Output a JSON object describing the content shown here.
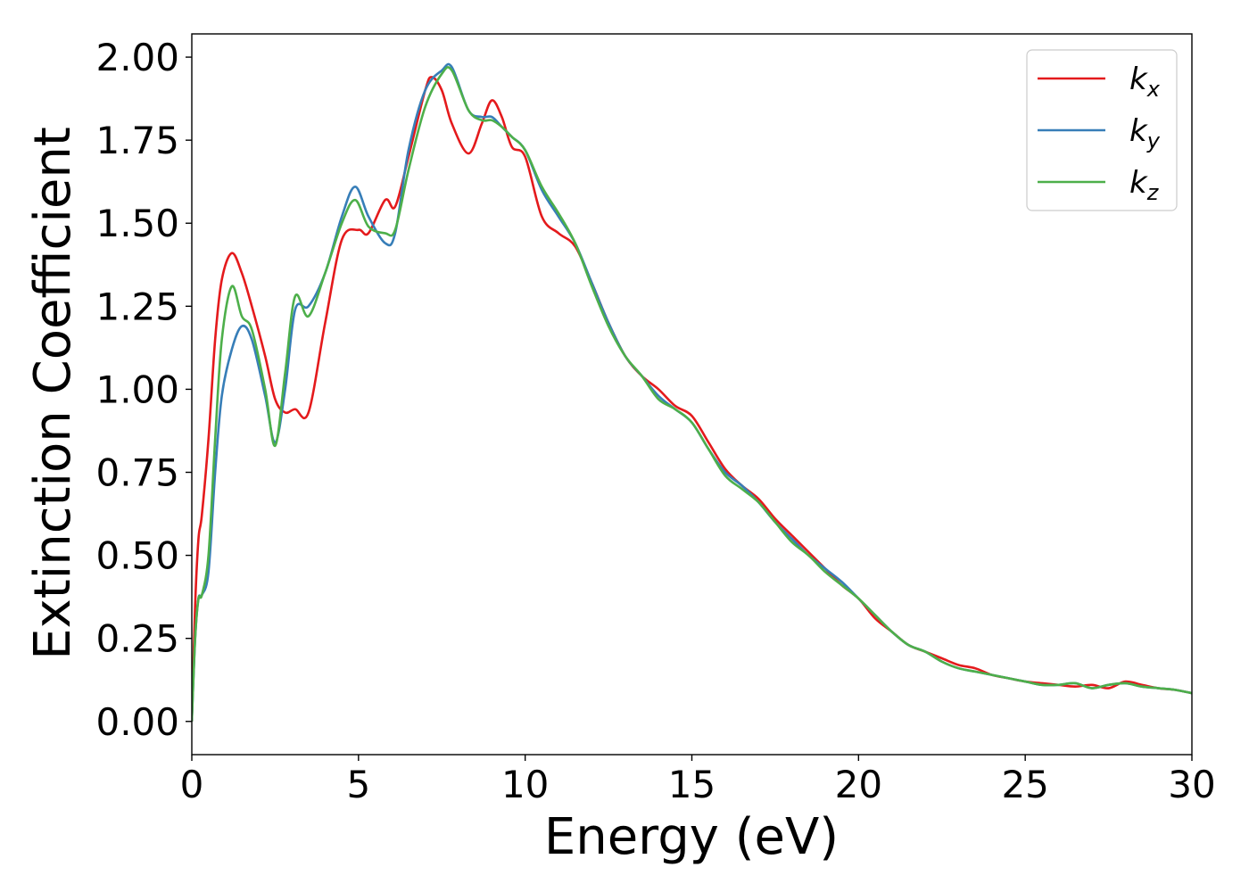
{
  "chart_data": {
    "type": "line",
    "xlabel": "Energy (eV)",
    "ylabel": "Extinction Coefficient",
    "xlim": [
      0,
      30
    ],
    "ylim": [
      -0.1,
      2.07
    ],
    "xticks": [
      0,
      5,
      10,
      15,
      20,
      25,
      30
    ],
    "xtick_labels": [
      "0",
      "5",
      "10",
      "15",
      "20",
      "25",
      "30"
    ],
    "yticks": [
      0,
      0.25,
      0.5,
      0.75,
      1.0,
      1.25,
      1.5,
      1.75,
      2.0
    ],
    "ytick_labels": [
      "0.00",
      "0.25",
      "0.50",
      "0.75",
      "1.00",
      "1.25",
      "1.50",
      "1.75",
      "2.00"
    ],
    "grid": false,
    "legend_position": "top-right",
    "series": [
      {
        "name": "k_x",
        "label_main": "k",
        "label_sub": "x",
        "color": "#e41a1c",
        "x": [
          0,
          0.1,
          0.2,
          0.3,
          0.5,
          0.7,
          0.9,
          1.2,
          1.5,
          1.8,
          2.2,
          2.5,
          2.8,
          3.1,
          3.5,
          4.0,
          4.5,
          5.0,
          5.3,
          5.8,
          6.1,
          6.5,
          7.0,
          7.2,
          7.5,
          7.8,
          8.3,
          8.7,
          9.0,
          9.3,
          9.6,
          10.0,
          10.5,
          11.0,
          11.5,
          12.0,
          12.5,
          13.0,
          13.5,
          14.0,
          14.5,
          15.0,
          15.5,
          16.0,
          16.5,
          17.0,
          17.5,
          18.0,
          18.5,
          19.0,
          19.5,
          20.0,
          20.5,
          21.0,
          21.5,
          22.0,
          22.5,
          23.0,
          23.5,
          24.0,
          24.5,
          25.0,
          25.5,
          26.0,
          26.5,
          27.0,
          27.5,
          28.0,
          28.5,
          29.0,
          29.5,
          30.0
        ],
        "y": [
          0.0,
          0.35,
          0.55,
          0.62,
          0.85,
          1.15,
          1.33,
          1.41,
          1.35,
          1.25,
          1.1,
          0.97,
          0.93,
          0.94,
          0.93,
          1.2,
          1.45,
          1.48,
          1.47,
          1.57,
          1.55,
          1.7,
          1.9,
          1.94,
          1.9,
          1.8,
          1.71,
          1.8,
          1.87,
          1.82,
          1.73,
          1.7,
          1.52,
          1.47,
          1.43,
          1.32,
          1.2,
          1.1,
          1.04,
          1.0,
          0.95,
          0.92,
          0.84,
          0.76,
          0.71,
          0.67,
          0.61,
          0.56,
          0.51,
          0.46,
          0.41,
          0.37,
          0.31,
          0.27,
          0.23,
          0.21,
          0.19,
          0.17,
          0.16,
          0.14,
          0.13,
          0.12,
          0.115,
          0.11,
          0.105,
          0.11,
          0.1,
          0.12,
          0.11,
          0.1,
          0.095,
          0.085
        ]
      },
      {
        "name": "k_y",
        "label_main": "k",
        "label_sub": "y",
        "color": "#377eb8",
        "x": [
          0,
          0.1,
          0.2,
          0.3,
          0.5,
          0.7,
          0.9,
          1.2,
          1.5,
          1.8,
          2.2,
          2.5,
          2.8,
          3.1,
          3.5,
          4.0,
          4.5,
          4.9,
          5.3,
          5.8,
          6.1,
          6.5,
          7.0,
          7.5,
          7.8,
          8.3,
          8.7,
          9.0,
          9.3,
          9.6,
          10.0,
          10.5,
          11.0,
          11.5,
          12.0,
          12.5,
          13.0,
          13.5,
          14.0,
          14.5,
          15.0,
          15.5,
          16.0,
          16.5,
          17.0,
          17.5,
          18.0,
          18.5,
          19.0,
          19.5,
          20.0,
          20.5,
          21.0,
          21.5,
          22.0,
          22.5,
          23.0,
          23.5,
          24.0,
          24.5,
          25.0,
          25.5,
          26.0,
          26.5,
          27.0,
          27.5,
          28.0,
          28.5,
          29.0,
          29.5,
          30.0
        ],
        "y": [
          0.0,
          0.25,
          0.37,
          0.38,
          0.45,
          0.75,
          0.98,
          1.12,
          1.19,
          1.15,
          0.98,
          0.84,
          1.0,
          1.24,
          1.25,
          1.35,
          1.52,
          1.61,
          1.52,
          1.44,
          1.47,
          1.72,
          1.9,
          1.96,
          1.97,
          1.84,
          1.82,
          1.82,
          1.79,
          1.76,
          1.72,
          1.6,
          1.52,
          1.44,
          1.32,
          1.2,
          1.1,
          1.04,
          0.98,
          0.94,
          0.9,
          0.82,
          0.75,
          0.71,
          0.66,
          0.6,
          0.55,
          0.5,
          0.46,
          0.42,
          0.37,
          0.32,
          0.27,
          0.23,
          0.21,
          0.18,
          0.16,
          0.15,
          0.14,
          0.13,
          0.12,
          0.11,
          0.11,
          0.115,
          0.1,
          0.11,
          0.115,
          0.105,
          0.1,
          0.095,
          0.085
        ]
      },
      {
        "name": "k_z",
        "label_main": "k",
        "label_sub": "z",
        "color": "#4daf4a",
        "x": [
          0,
          0.1,
          0.2,
          0.3,
          0.5,
          0.7,
          0.9,
          1.2,
          1.5,
          1.8,
          2.2,
          2.5,
          2.8,
          3.1,
          3.5,
          4.0,
          4.5,
          4.9,
          5.3,
          5.8,
          6.1,
          6.5,
          7.0,
          7.5,
          7.8,
          8.3,
          8.7,
          9.0,
          9.3,
          9.6,
          10.0,
          10.5,
          11.0,
          11.5,
          12.0,
          12.5,
          13.0,
          13.5,
          14.0,
          14.5,
          15.0,
          15.5,
          16.0,
          16.5,
          17.0,
          17.5,
          18.0,
          18.5,
          19.0,
          19.5,
          20.0,
          20.5,
          21.0,
          21.5,
          22.0,
          22.5,
          23.0,
          23.5,
          24.0,
          24.5,
          25.0,
          25.5,
          26.0,
          26.5,
          27.0,
          27.5,
          28.0,
          28.5,
          29.0,
          29.5,
          30.0
        ],
        "y": [
          0.0,
          0.25,
          0.37,
          0.38,
          0.5,
          0.85,
          1.15,
          1.31,
          1.22,
          1.18,
          1.0,
          0.83,
          1.05,
          1.28,
          1.22,
          1.35,
          1.5,
          1.57,
          1.49,
          1.47,
          1.48,
          1.66,
          1.85,
          1.95,
          1.96,
          1.84,
          1.81,
          1.81,
          1.79,
          1.76,
          1.72,
          1.61,
          1.53,
          1.44,
          1.31,
          1.19,
          1.1,
          1.04,
          0.97,
          0.94,
          0.9,
          0.82,
          0.74,
          0.7,
          0.66,
          0.6,
          0.54,
          0.5,
          0.45,
          0.41,
          0.37,
          0.32,
          0.27,
          0.23,
          0.21,
          0.18,
          0.16,
          0.15,
          0.14,
          0.13,
          0.12,
          0.11,
          0.11,
          0.115,
          0.1,
          0.11,
          0.115,
          0.105,
          0.1,
          0.095,
          0.085
        ]
      }
    ]
  }
}
